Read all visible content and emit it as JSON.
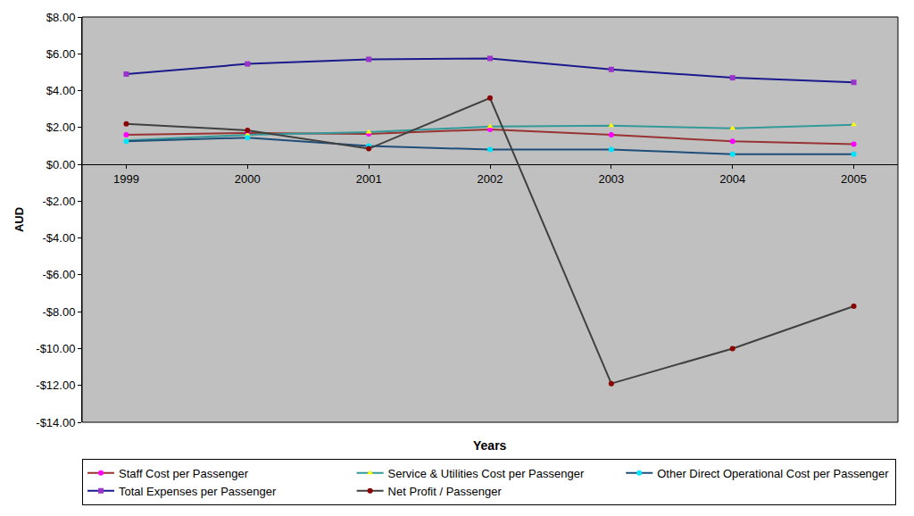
{
  "chart_data": {
    "type": "line",
    "x_label": "Years",
    "y_label": "AUD",
    "categories": [
      "1999",
      "2000",
      "2001",
      "2002",
      "2003",
      "2004",
      "2005"
    ],
    "series": [
      {
        "name": "Staff Cost per Passenger",
        "color": "#993333",
        "marker": "circle",
        "values": [
          1.6,
          1.7,
          1.65,
          1.9,
          1.6,
          1.25,
          1.1
        ]
      },
      {
        "name": "Service & Utilities Cost per Passenger",
        "color": "#339999",
        "marker": "triangle",
        "values": [
          1.3,
          1.6,
          1.75,
          2.05,
          2.1,
          1.95,
          2.15
        ]
      },
      {
        "name": "Other Direct Operational Cost per Passenger",
        "color": "#1f4e79",
        "marker": "circle",
        "values": [
          1.25,
          1.45,
          1.0,
          0.8,
          0.8,
          0.55,
          0.55
        ]
      },
      {
        "name": "Total Expenses per Passenger",
        "color": "#1a1a8c",
        "marker": "square",
        "values": [
          4.9,
          5.45,
          5.7,
          5.75,
          5.15,
          4.7,
          4.45
        ]
      },
      {
        "name": "Net Profit / Passenger",
        "color": "#404040",
        "marker": "circle",
        "values": [
          2.2,
          1.85,
          0.85,
          3.6,
          -11.9,
          -10.0,
          -7.7
        ]
      }
    ],
    "ylim": [
      -14,
      8
    ],
    "yticks": [
      {
        "value": -14,
        "label": "-$14.00"
      },
      {
        "value": -12,
        "label": "-$12.00"
      },
      {
        "value": -10,
        "label": "-$10.00"
      },
      {
        "value": -8,
        "label": "-$8.00"
      },
      {
        "value": -6,
        "label": "-$6.00"
      },
      {
        "value": -4,
        "label": "-$4.00"
      },
      {
        "value": -2,
        "label": "-$2.00"
      },
      {
        "value": 0,
        "label": "$0.00"
      },
      {
        "value": 2,
        "label": "$2.00"
      },
      {
        "value": 4,
        "label": "$4.00"
      },
      {
        "value": 6,
        "label": "$6.00"
      },
      {
        "value": 8,
        "label": "$8.00"
      }
    ],
    "grid": false,
    "legend": "bottom"
  }
}
